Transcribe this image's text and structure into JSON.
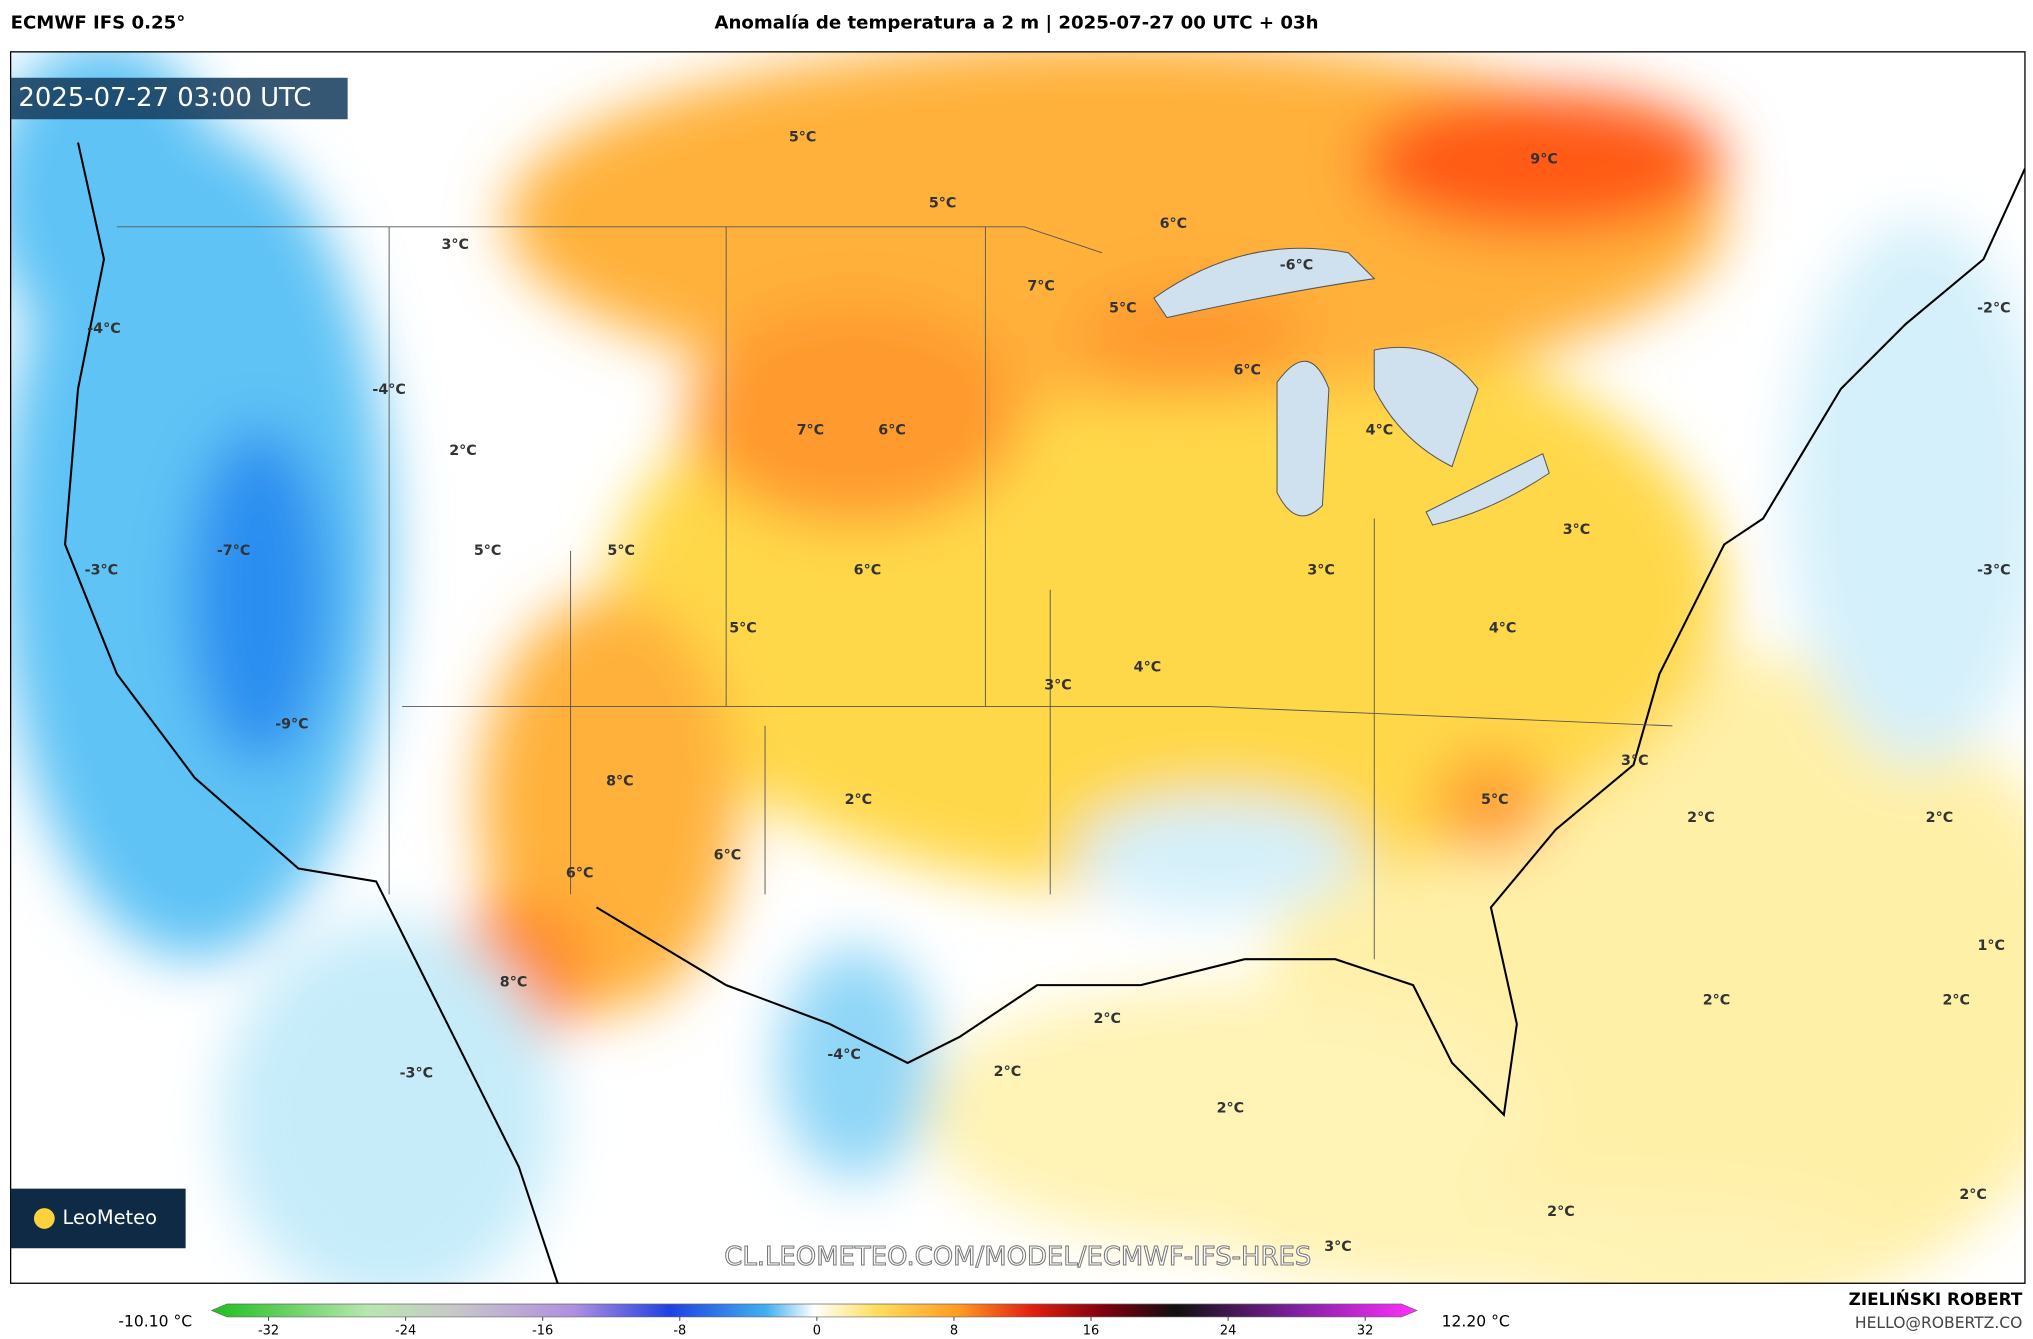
{
  "header": {
    "model": "ECMWF IFS 0.25°",
    "title": "Anomalía de temperatura a 2 m | 2025-07-27 00 UTC + 03h"
  },
  "map": {
    "timestamp": "2025-07-27 03:00 UTC",
    "logo": "LeoMeteo",
    "watermark": "CL.LEOMETEO.COM/MODEL/ECMWF-IFS-HRES",
    "labels": [
      "5°C",
      "5°C",
      "3°C",
      "6°C",
      "7°C",
      "5°C",
      "-6°C",
      "9°C",
      "-4°C",
      "-4°C",
      "6°C",
      "7°C",
      "6°C",
      "4°C",
      "2°C",
      "-7°C",
      "-3°C",
      "5°C",
      "5°C",
      "6°C",
      "3°C",
      "3°C",
      "5°C",
      "4°C",
      "4°C",
      "3°C",
      "-9°C",
      "3°C",
      "8°C",
      "5°C",
      "2°C",
      "2°C",
      "2°C",
      "6°C",
      "6°C",
      "1°C",
      "8°C",
      "2°C",
      "2°C",
      "2°C",
      "-3°C",
      "-4°C",
      "2°C",
      "2°C",
      "2°C",
      "2°C",
      "3°C",
      "-2°C",
      "-3°C"
    ]
  },
  "colorbar": {
    "min_label": "-10.10 °C",
    "max_label": "12.20 °C",
    "ticks": [
      -32,
      -24,
      -16,
      -8,
      0,
      8,
      16,
      24,
      32
    ]
  },
  "credits": {
    "author": "ZIELIŃSKI ROBERT",
    "email": "HELLO@ROBERTZ.CO"
  }
}
